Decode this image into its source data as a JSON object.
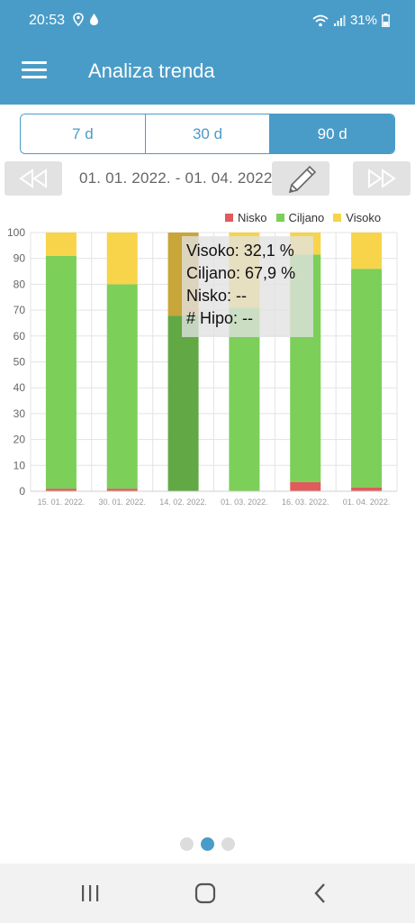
{
  "status": {
    "time": "20:53",
    "battery": "31%",
    "icons": [
      "location-icon",
      "drop-icon",
      "wifi-icon",
      "signal-icon",
      "battery-icon"
    ]
  },
  "app_bar": {
    "title": "Analiza trenda",
    "menu_icon": "hamburger-menu-icon"
  },
  "range_tabs": [
    {
      "label": "7 d",
      "active": false
    },
    {
      "label": "30 d",
      "active": false
    },
    {
      "label": "90 d",
      "active": true
    }
  ],
  "date_nav": {
    "range": "01. 01. 2022. - 01. 04. 2022.",
    "prev_icon": "rewind-icon",
    "edit_icon": "pencil-icon",
    "next_icon": "fast-forward-icon"
  },
  "tooltip": {
    "line1": "Visoko: 32,1 %",
    "line2": "Ciljano: 67,9 %",
    "line3": "Nisko: --",
    "line4": "# Hipo: --"
  },
  "colors": {
    "accent": "#4a9cc8",
    "nisko": "#e05b5b",
    "ciljano": "#7ccf59",
    "visoko": "#f7d44a",
    "ciljano_selected": "#62a844",
    "visoko_selected": "#c9a63a"
  },
  "chart_data": {
    "type": "bar",
    "stacked": true,
    "categories": [
      "15. 01. 2022.",
      "30. 01. 2022.",
      "14. 02. 2022.",
      "01. 03. 2022.",
      "16. 03. 2022.",
      "01. 04. 2022."
    ],
    "series": [
      {
        "name": "Nisko",
        "values": [
          1,
          1,
          0,
          0,
          3.5,
          1.5
        ]
      },
      {
        "name": "Ciljano",
        "values": [
          90,
          79,
          67.9,
          71,
          88,
          84.5
        ]
      },
      {
        "name": "Visoko",
        "values": [
          9,
          20,
          32.1,
          29,
          8.5,
          14
        ]
      }
    ],
    "yticks": [
      0,
      10,
      20,
      30,
      40,
      50,
      60,
      70,
      80,
      90,
      100
    ],
    "ylim": [
      0,
      100
    ],
    "selected_index": 2,
    "legend_position": "top-right",
    "grid": true
  },
  "pager": {
    "count": 3,
    "active": 1
  },
  "nav": {
    "recents_icon": "recent-apps-icon",
    "home_icon": "home-icon",
    "back_icon": "back-icon"
  }
}
